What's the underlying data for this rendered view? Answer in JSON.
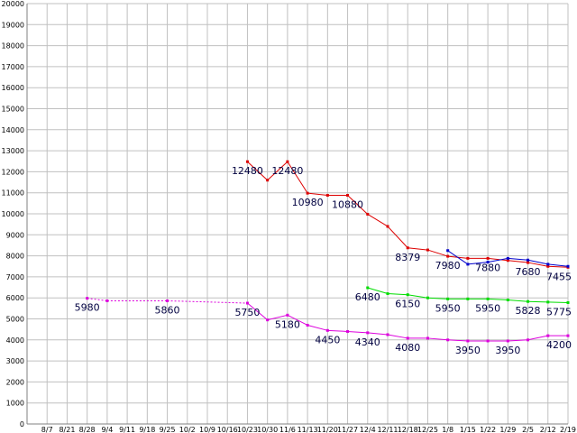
{
  "chart_data": {
    "type": "line",
    "title": "",
    "xlabel": "",
    "ylabel": "",
    "ylim": [
      0,
      20000
    ],
    "y_ticks": [
      0,
      1000,
      2000,
      3000,
      4000,
      5000,
      6000,
      7000,
      8000,
      9000,
      10000,
      11000,
      12000,
      13000,
      14000,
      15000,
      16000,
      17000,
      18000,
      19000,
      20000
    ],
    "grid": true,
    "legend": "none",
    "categories": [
      "8/7",
      "8/21",
      "8/28",
      "9/4",
      "9/11",
      "9/18",
      "9/25",
      "10/2",
      "10/9",
      "10/16",
      "10/23",
      "10/30",
      "11/6",
      "11/13",
      "11/20",
      "11/27",
      "12/4",
      "12/11",
      "12/18",
      "12/25",
      "1/8",
      "1/15",
      "1/22",
      "1/29",
      "2/5",
      "2/12",
      "2/19"
    ],
    "colors": {
      "grid": "#c0c0c0",
      "axis": "#808080",
      "label": "#000040"
    },
    "series": [
      {
        "color": "#dd0000",
        "points": [
          {
            "x": "10/23",
            "y": 12480
          },
          {
            "x": "10/30",
            "y": 11600
          },
          {
            "x": "11/6",
            "y": 12480
          },
          {
            "x": "11/13",
            "y": 10980
          },
          {
            "x": "11/20",
            "y": 10880
          },
          {
            "x": "11/27",
            "y": 10880
          },
          {
            "x": "12/4",
            "y": 9980
          },
          {
            "x": "12/11",
            "y": 9400
          },
          {
            "x": "12/18",
            "y": 8379
          },
          {
            "x": "12/25",
            "y": 8280
          },
          {
            "x": "1/8",
            "y": 7980
          },
          {
            "x": "1/15",
            "y": 7880
          },
          {
            "x": "1/22",
            "y": 7880
          },
          {
            "x": "1/29",
            "y": 7780
          },
          {
            "x": "2/5",
            "y": 7680
          },
          {
            "x": "2/12",
            "y": 7500
          },
          {
            "x": "2/19",
            "y": 7455
          }
        ]
      },
      {
        "color": "#0000cc",
        "points": [
          {
            "x": "1/8",
            "y": 8250
          },
          {
            "x": "1/15",
            "y": 7600
          },
          {
            "x": "1/22",
            "y": 7700
          },
          {
            "x": "1/29",
            "y": 7880
          },
          {
            "x": "2/5",
            "y": 7800
          },
          {
            "x": "2/12",
            "y": 7600
          },
          {
            "x": "2/19",
            "y": 7500
          }
        ]
      },
      {
        "color": "#00dd00",
        "points": [
          {
            "x": "12/4",
            "y": 6480
          },
          {
            "x": "12/11",
            "y": 6200
          },
          {
            "x": "12/18",
            "y": 6150
          },
          {
            "x": "12/25",
            "y": 6000
          },
          {
            "x": "1/8",
            "y": 5950
          },
          {
            "x": "1/15",
            "y": 5950
          },
          {
            "x": "1/22",
            "y": 5950
          },
          {
            "x": "1/29",
            "y": 5900
          },
          {
            "x": "2/5",
            "y": 5828
          },
          {
            "x": "2/12",
            "y": 5800
          },
          {
            "x": "2/19",
            "y": 5775
          }
        ]
      },
      {
        "color": "#dd00dd",
        "points": [
          {
            "x": "8/28",
            "y": 5980,
            "dashed_to_next": true
          },
          {
            "x": "9/4",
            "y": 5860,
            "dashed_to_next": true
          },
          {
            "x": "9/25",
            "y": 5860,
            "dashed_to_next": true
          },
          {
            "x": "10/23",
            "y": 5750
          },
          {
            "x": "10/30",
            "y": 4950
          },
          {
            "x": "11/6",
            "y": 5180
          },
          {
            "x": "11/13",
            "y": 4700
          },
          {
            "x": "11/20",
            "y": 4450
          },
          {
            "x": "11/27",
            "y": 4400
          },
          {
            "x": "12/4",
            "y": 4340
          },
          {
            "x": "12/11",
            "y": 4250
          },
          {
            "x": "12/18",
            "y": 4080
          },
          {
            "x": "12/25",
            "y": 4080
          },
          {
            "x": "1/8",
            "y": 4000
          },
          {
            "x": "1/15",
            "y": 3950
          },
          {
            "x": "1/22",
            "y": 3950
          },
          {
            "x": "1/29",
            "y": 3950
          },
          {
            "x": "2/5",
            "y": 4000
          },
          {
            "x": "2/12",
            "y": 4200
          },
          {
            "x": "2/19",
            "y": 4200
          }
        ]
      }
    ],
    "data_labels": [
      {
        "text": "12480",
        "x": "10/23",
        "y": 12480
      },
      {
        "text": "12480",
        "x": "11/6",
        "y": 12480
      },
      {
        "text": "10980",
        "x": "11/13",
        "y": 10980
      },
      {
        "text": "10880",
        "x": "11/27",
        "y": 10880
      },
      {
        "text": "8379",
        "x": "12/18",
        "y": 8379
      },
      {
        "text": "7980",
        "x": "1/8",
        "y": 7980
      },
      {
        "text": "7880",
        "x": "1/22",
        "y": 7880
      },
      {
        "text": "7680",
        "x": "2/5",
        "y": 7680
      },
      {
        "text": "7455",
        "x": "2/19",
        "y": 7455
      },
      {
        "text": "6480",
        "x": "12/4",
        "y": 6480
      },
      {
        "text": "6150",
        "x": "12/18",
        "y": 6150
      },
      {
        "text": "5950",
        "x": "1/8",
        "y": 5950
      },
      {
        "text": "5950",
        "x": "1/22",
        "y": 5950
      },
      {
        "text": "5828",
        "x": "2/5",
        "y": 5828
      },
      {
        "text": "5775",
        "x": "2/19",
        "y": 5775
      },
      {
        "text": "5980",
        "x": "8/28",
        "y": 5980
      },
      {
        "text": "5860",
        "x": "9/25",
        "y": 5860
      },
      {
        "text": "5750",
        "x": "10/23",
        "y": 5750
      },
      {
        "text": "5180",
        "x": "11/6",
        "y": 5180
      },
      {
        "text": "4450",
        "x": "11/20",
        "y": 4450
      },
      {
        "text": "4340",
        "x": "12/4",
        "y": 4340
      },
      {
        "text": "4080",
        "x": "12/18",
        "y": 4080
      },
      {
        "text": "3950",
        "x": "1/15",
        "y": 3950
      },
      {
        "text": "3950",
        "x": "1/29",
        "y": 3950
      },
      {
        "text": "4200",
        "x": "2/19",
        "y": 4200
      }
    ]
  }
}
